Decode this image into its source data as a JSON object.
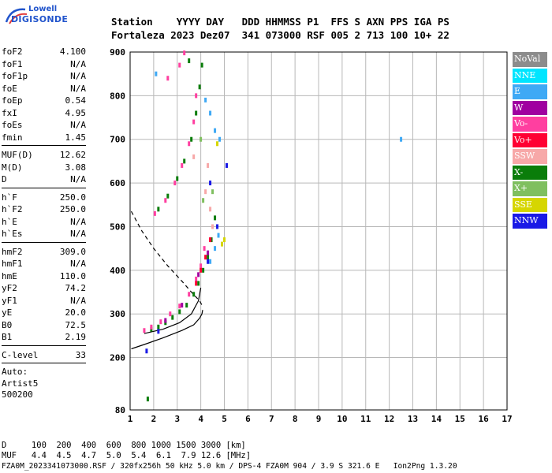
{
  "logo": {
    "line1": "Lowell",
    "line2": "DIGISONDE"
  },
  "header": {
    "line1": "Station    YYYY DAY   DDD HHMMSS P1  FFS S AXN PPS IGA PS",
    "line2": "Fortaleza 2023 Dez07  341 073000 RSF 005 2 713 100 10+ 22"
  },
  "params": [
    {
      "name": "foF2",
      "value": "4.100"
    },
    {
      "name": "foF1",
      "value": "N/A"
    },
    {
      "name": "foF1p",
      "value": "N/A"
    },
    {
      "name": "foE",
      "value": "N/A"
    },
    {
      "name": "foEp",
      "value": "0.54"
    },
    {
      "name": "fxI",
      "value": "4.95"
    },
    {
      "name": "foEs",
      "value": "N/A"
    },
    {
      "name": "fmin",
      "value": "1.45"
    },
    {
      "sep": true
    },
    {
      "name": "MUF(D)",
      "value": "12.62"
    },
    {
      "name": "M(D)",
      "value": "3.08"
    },
    {
      "name": "D",
      "value": "N/A"
    },
    {
      "sep": true
    },
    {
      "name": "h`F",
      "value": "250.0"
    },
    {
      "name": "h`F2",
      "value": "250.0"
    },
    {
      "name": "h`E",
      "value": "N/A"
    },
    {
      "name": "h`Es",
      "value": "N/A"
    },
    {
      "sep": true
    },
    {
      "name": "hmF2",
      "value": "309.0"
    },
    {
      "name": "hmF1",
      "value": "N/A"
    },
    {
      "name": "hmE",
      "value": "110.0"
    },
    {
      "name": "yF2",
      "value": "74.2"
    },
    {
      "name": "yF1",
      "value": "N/A"
    },
    {
      "name": "yE",
      "value": "20.0"
    },
    {
      "name": "B0",
      "value": "72.5"
    },
    {
      "name": "B1",
      "value": "2.19"
    },
    {
      "sep": true
    },
    {
      "name": "C-level",
      "value": "33"
    },
    {
      "sep": true
    }
  ],
  "panel_footer": {
    "line1": "Auto:",
    "line2": "Artist5",
    "line3": "500200"
  },
  "legend": [
    {
      "label": "NoVal",
      "color": "#8c8c8c"
    },
    {
      "label": "NNE",
      "color": "#00e5ff"
    },
    {
      "label": "E",
      "color": "#3fa9f5"
    },
    {
      "label": "W",
      "color": "#a000a0"
    },
    {
      "label": "Vo-",
      "color": "#ff3fa0"
    },
    {
      "label": "Vo+",
      "color": "#ff0033"
    },
    {
      "label": "SSW",
      "color": "#f7a8a8"
    },
    {
      "label": "X-",
      "color": "#0a7d0a"
    },
    {
      "label": "X+",
      "color": "#7fbf5f"
    },
    {
      "label": "SSE",
      "color": "#d6d600"
    },
    {
      "label": "NNW",
      "color": "#1a1ae6"
    }
  ],
  "footer": {
    "line1": "D     100  200  400  600  800 1000 1500 3000 [km]",
    "line2": "MUF   4.4  4.5  4.7  5.0  5.4  6.1  7.9 12.6 [MHz]",
    "line3": "FZA0M_2023341073000.RSF / 320fx256h 50 kHz 5.0 km / DPS-4 FZA0M 904 / 3.9 S 321.6 E   Ion2Png 1.3.20"
  },
  "chart_data": {
    "type": "scatter",
    "xlim": [
      1,
      17
    ],
    "ylim": [
      80,
      900
    ],
    "xticks": [
      1,
      2,
      3,
      4,
      5,
      6,
      7,
      8,
      9,
      10,
      11,
      12,
      13,
      14,
      15,
      16,
      17
    ],
    "yticks": [
      80,
      200,
      300,
      400,
      500,
      600,
      700,
      800,
      900
    ],
    "grid": true,
    "legend_position": "right",
    "series": [
      {
        "name": "X-",
        "color": "#0a7d0a",
        "points": [
          [
            1.9,
            265
          ],
          [
            2.2,
            270
          ],
          [
            2.5,
            280
          ],
          [
            2.8,
            292
          ],
          [
            3.1,
            305
          ],
          [
            3.4,
            320
          ],
          [
            3.7,
            345
          ],
          [
            3.9,
            370
          ],
          [
            4.1,
            400
          ],
          [
            4.3,
            430
          ],
          [
            4.45,
            470
          ],
          [
            4.6,
            520
          ],
          [
            2.2,
            540
          ],
          [
            2.6,
            570
          ],
          [
            3.0,
            610
          ],
          [
            3.3,
            650
          ],
          [
            3.6,
            700
          ],
          [
            3.8,
            760
          ],
          [
            3.95,
            820
          ],
          [
            4.05,
            870
          ],
          [
            3.5,
            880
          ],
          [
            1.75,
            105
          ]
        ]
      },
      {
        "name": "Vo-",
        "color": "#ff3fa0",
        "points": [
          [
            1.6,
            262
          ],
          [
            1.9,
            270
          ],
          [
            2.3,
            282
          ],
          [
            2.7,
            300
          ],
          [
            3.1,
            318
          ],
          [
            3.5,
            345
          ],
          [
            3.8,
            380
          ],
          [
            4.0,
            410
          ],
          [
            4.15,
            450
          ],
          [
            2.05,
            530
          ],
          [
            2.5,
            560
          ],
          [
            2.9,
            600
          ],
          [
            3.2,
            640
          ],
          [
            3.5,
            690
          ],
          [
            3.7,
            740
          ],
          [
            3.8,
            800
          ],
          [
            2.6,
            840
          ],
          [
            3.1,
            870
          ],
          [
            3.3,
            898
          ]
        ]
      },
      {
        "name": "E",
        "color": "#3fa9f5",
        "points": [
          [
            4.4,
            420
          ],
          [
            4.6,
            450
          ],
          [
            4.75,
            480
          ],
          [
            4.8,
            700
          ],
          [
            4.6,
            720
          ],
          [
            4.4,
            760
          ],
          [
            4.2,
            790
          ],
          [
            12.5,
            700
          ],
          [
            2.1,
            850
          ]
        ]
      },
      {
        "name": "W",
        "color": "#a000a0",
        "points": [
          [
            2.5,
            285
          ],
          [
            3.2,
            320
          ],
          [
            3.9,
            390
          ],
          [
            4.3,
            440
          ]
        ]
      },
      {
        "name": "Vo+",
        "color": "#ff0033",
        "points": [
          [
            3.8,
            370
          ],
          [
            4.0,
            400
          ],
          [
            4.2,
            430
          ],
          [
            4.4,
            470
          ]
        ]
      },
      {
        "name": "SSW",
        "color": "#f7a8a8",
        "points": [
          [
            4.5,
            500
          ],
          [
            4.4,
            540
          ],
          [
            4.2,
            580
          ],
          [
            3.7,
            660
          ],
          [
            4.3,
            640
          ]
        ]
      },
      {
        "name": "X+",
        "color": "#7fbf5f",
        "points": [
          [
            4.1,
            560
          ],
          [
            4.5,
            580
          ],
          [
            4.0,
            700
          ]
        ]
      },
      {
        "name": "SSE",
        "color": "#d6d600",
        "points": [
          [
            4.9,
            460
          ],
          [
            4.7,
            690
          ],
          [
            5.0,
            470
          ]
        ]
      },
      {
        "name": "NNW",
        "color": "#1a1ae6",
        "points": [
          [
            4.4,
            600
          ],
          [
            4.7,
            500
          ],
          [
            5.1,
            640
          ],
          [
            1.7,
            215
          ],
          [
            2.2,
            260
          ],
          [
            4.3,
            420
          ]
        ]
      }
    ],
    "lines": [
      {
        "style": "solid",
        "points": [
          [
            1.05,
            220
          ],
          [
            1.6,
            230
          ],
          [
            2.4,
            245
          ],
          [
            3.2,
            262
          ],
          [
            3.7,
            275
          ],
          [
            3.95,
            290
          ],
          [
            4.05,
            300
          ],
          [
            4.08,
            309
          ]
        ]
      },
      {
        "style": "solid",
        "points": [
          [
            1.6,
            255
          ],
          [
            2.4,
            265
          ],
          [
            3.1,
            280
          ],
          [
            3.6,
            300
          ],
          [
            3.9,
            330
          ],
          [
            4.0,
            360
          ]
        ]
      },
      {
        "style": "dashed",
        "points": [
          [
            1.05,
            535
          ],
          [
            1.5,
            490
          ],
          [
            2.0,
            450
          ],
          [
            2.6,
            410
          ],
          [
            3.2,
            375
          ],
          [
            3.6,
            350
          ],
          [
            3.95,
            330
          ],
          [
            4.05,
            320
          ]
        ]
      }
    ]
  }
}
